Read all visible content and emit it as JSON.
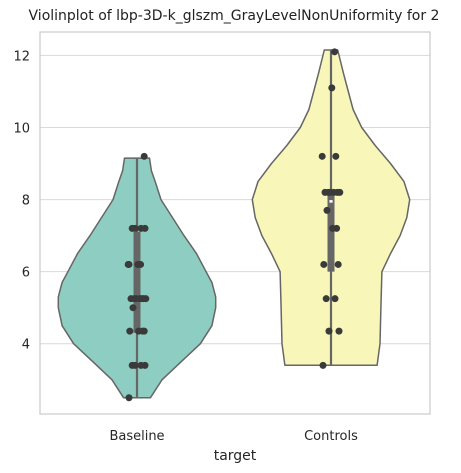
{
  "chart_data": {
    "type": "violin",
    "title": "Violinplot of lbp-3D-k_glszm_GrayLevelNonUniformity for 2",
    "xlabel": "target",
    "ylabel": "",
    "categories": [
      "Baseline",
      "Controls"
    ],
    "ylim": [
      2.05,
      12.65
    ],
    "yticks": [
      4,
      6,
      8,
      10,
      12
    ],
    "grid": true,
    "colors": {
      "Baseline": "#8ecdc1",
      "Controls": "#f8f7b9",
      "outline": "#666666",
      "points": "#3a3a3a"
    },
    "violins": [
      {
        "name": "Baseline",
        "range": [
          2.5,
          9.15
        ],
        "iqr": [
          4.3,
          7.1
        ],
        "median": 5.3,
        "points": [
          2.5,
          3.4,
          3.4,
          3.4,
          3.4,
          4.35,
          4.35,
          4.35,
          4.35,
          5.0,
          5.25,
          5.25,
          5.25,
          5.25,
          5.25,
          5.25,
          5.25,
          6.2,
          6.2,
          6.2,
          6.2,
          7.2,
          7.2,
          7.2,
          7.2,
          9.2
        ],
        "density": [
          [
            2.5,
            0.14
          ],
          [
            3.0,
            0.26
          ],
          [
            3.5,
            0.46
          ],
          [
            4.0,
            0.66
          ],
          [
            4.5,
            0.78
          ],
          [
            5.0,
            0.82
          ],
          [
            5.3,
            0.82
          ],
          [
            5.7,
            0.78
          ],
          [
            6.0,
            0.72
          ],
          [
            6.5,
            0.62
          ],
          [
            7.0,
            0.49
          ],
          [
            7.5,
            0.37
          ],
          [
            8.0,
            0.25
          ],
          [
            8.5,
            0.19
          ],
          [
            8.8,
            0.15
          ],
          [
            9.15,
            0.13
          ]
        ]
      },
      {
        "name": "Controls",
        "range": [
          3.4,
          12.15
        ],
        "iqr": [
          6.0,
          8.2
        ],
        "median": 7.95,
        "points": [
          3.4,
          4.35,
          4.35,
          5.25,
          5.25,
          6.2,
          6.2,
          7.2,
          7.2,
          7.7,
          8.2,
          8.2,
          8.2,
          8.2,
          8.2,
          8.2,
          9.2,
          9.2,
          11.1,
          12.1
        ],
        "density": [
          [
            3.4,
            0.48
          ],
          [
            4.0,
            0.51
          ],
          [
            5.0,
            0.52
          ],
          [
            6.0,
            0.53
          ],
          [
            6.5,
            0.62
          ],
          [
            7.0,
            0.72
          ],
          [
            7.5,
            0.79
          ],
          [
            8.0,
            0.82
          ],
          [
            8.5,
            0.76
          ],
          [
            9.0,
            0.62
          ],
          [
            9.5,
            0.46
          ],
          [
            10.0,
            0.32
          ],
          [
            10.5,
            0.23
          ],
          [
            11.0,
            0.18
          ],
          [
            11.5,
            0.13
          ],
          [
            12.15,
            0.07
          ]
        ]
      }
    ]
  }
}
